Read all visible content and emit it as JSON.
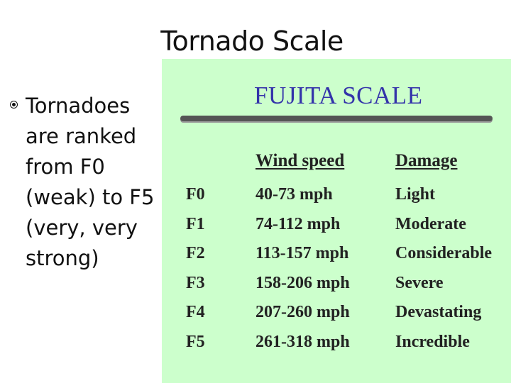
{
  "slide": {
    "title": "Tornado Scale"
  },
  "bullet": {
    "text": "Tornadoes are ranked from F0 (weak) to F5 (very, very strong)"
  },
  "scale_image": {
    "title": "FUJITA SCALE",
    "headers": {
      "wind": "Wind speed",
      "damage": "Damage"
    },
    "rows": [
      {
        "category": "F0",
        "wind": "40-73 mph",
        "damage": "Light"
      },
      {
        "category": "F1",
        "wind": "74-112 mph",
        "damage": "Moderate"
      },
      {
        "category": "F2",
        "wind": "113-157 mph",
        "damage": "Considerable"
      },
      {
        "category": "F3",
        "wind": "158-206 mph",
        "damage": "Severe"
      },
      {
        "category": "F4",
        "wind": "207-260 mph",
        "damage": "Devastating"
      },
      {
        "category": "F5",
        "wind": "261-318 mph",
        "damage": "Incredible"
      }
    ],
    "colors": {
      "background": "#ccffcc",
      "title": "#3333aa"
    }
  }
}
